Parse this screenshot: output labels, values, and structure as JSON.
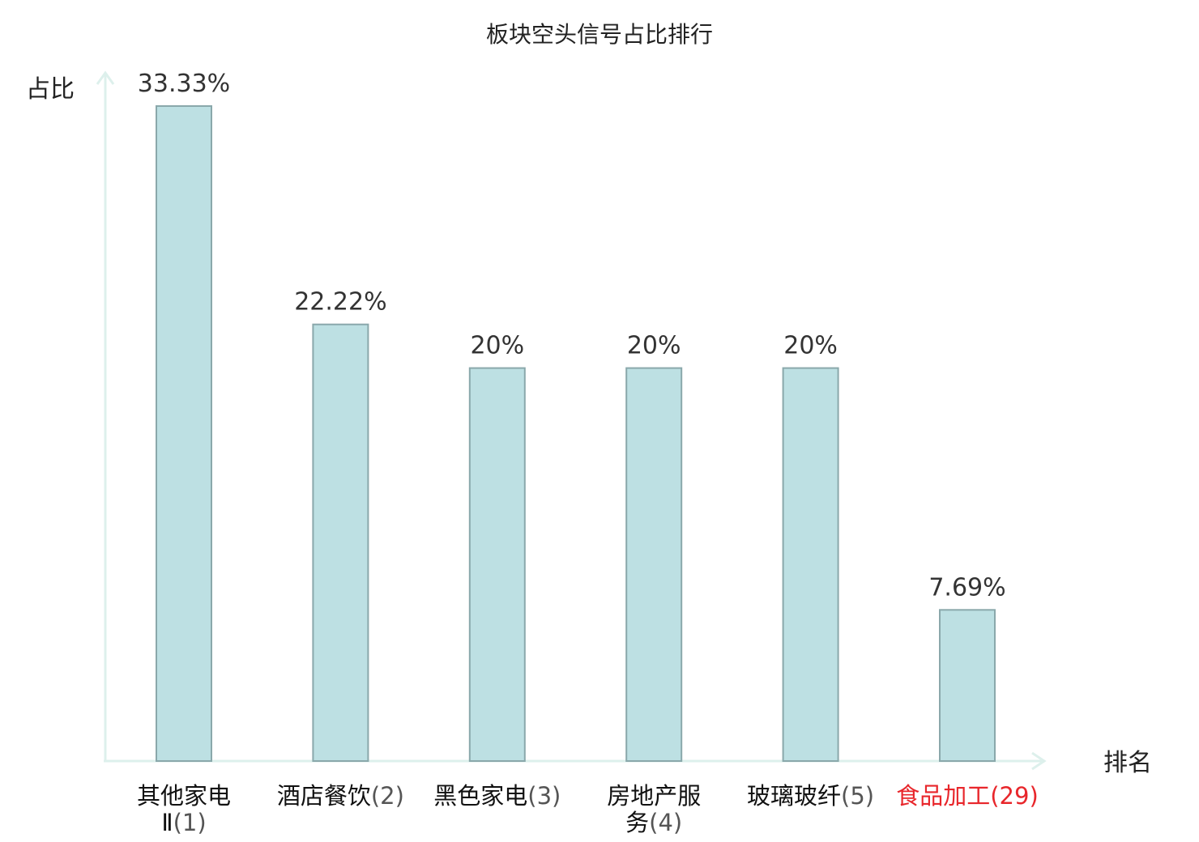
{
  "chart_data": {
    "type": "bar",
    "title": "板块空头信号占比排行",
    "ylabel": "占比",
    "xlabel": "排名",
    "ylim": [
      0,
      33.33
    ],
    "categories": [
      {
        "name_lines": [
          "其他家电",
          "Ⅱ"
        ],
        "rank": "(1)",
        "highlight": false
      },
      {
        "name_lines": [
          "酒店餐饮"
        ],
        "rank": "(2)",
        "highlight": false
      },
      {
        "name_lines": [
          "黑色家电"
        ],
        "rank": "(3)",
        "highlight": false
      },
      {
        "name_lines": [
          "房地产服",
          "务"
        ],
        "rank": "(4)",
        "highlight": false
      },
      {
        "name_lines": [
          "玻璃玻纤"
        ],
        "rank": "(5)",
        "highlight": false
      },
      {
        "name_lines": [
          "食品加工"
        ],
        "rank": "(29)",
        "highlight": true
      }
    ],
    "values": [
      33.33,
      22.22,
      20,
      20,
      20,
      7.69
    ],
    "value_labels": [
      "33.33%",
      "22.22%",
      "20%",
      "20%",
      "20%",
      "7.69%"
    ],
    "grid": false,
    "legend": "none",
    "colors": {
      "bar_fill": "#bde0e3",
      "bar_stroke": "#8aa8ab",
      "axis": "#ddf0ec",
      "highlight": "#e8262b"
    }
  }
}
